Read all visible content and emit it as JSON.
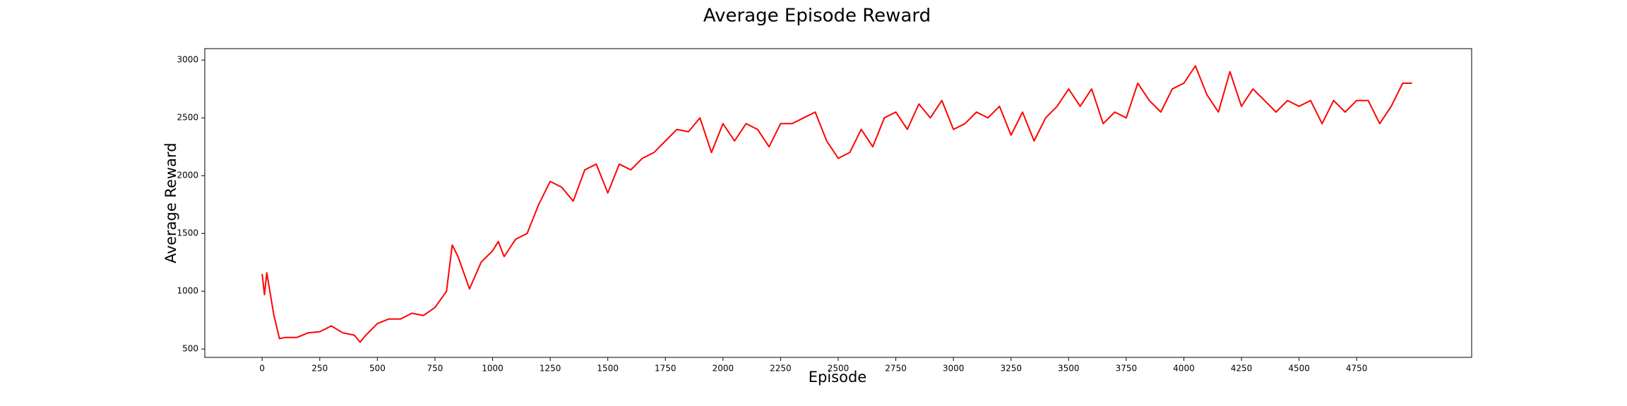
{
  "chart_data": {
    "type": "line",
    "title": "Average Episode Reward",
    "x_label": "Episode",
    "y_label": "Average Reward",
    "x": [
      0,
      10,
      20,
      50,
      75,
      100,
      150,
      200,
      250,
      300,
      350,
      400,
      425,
      450,
      500,
      550,
      600,
      650,
      700,
      750,
      800,
      825,
      850,
      900,
      950,
      1000,
      1025,
      1050,
      1100,
      1150,
      1200,
      1250,
      1300,
      1350,
      1400,
      1450,
      1500,
      1550,
      1600,
      1650,
      1700,
      1750,
      1800,
      1850,
      1900,
      1950,
      2000,
      2050,
      2100,
      2150,
      2200,
      2250,
      2300,
      2350,
      2400,
      2450,
      2500,
      2550,
      2600,
      2650,
      2700,
      2750,
      2800,
      2850,
      2900,
      2950,
      3000,
      3050,
      3100,
      3150,
      3200,
      3250,
      3300,
      3350,
      3400,
      3450,
      3500,
      3550,
      3600,
      3650,
      3700,
      3750,
      3800,
      3850,
      3900,
      3950,
      4000,
      4050,
      4100,
      4150,
      4200,
      4250,
      4300,
      4350,
      4400,
      4450,
      4500,
      4550,
      4600,
      4650,
      4700,
      4750,
      4800,
      4850,
      4900,
      4950,
      4990
    ],
    "series": [
      {
        "name": "Average Reward",
        "color": "#ff0000",
        "values": [
          1150,
          970,
          1160,
          800,
          590,
          600,
          600,
          640,
          650,
          700,
          640,
          620,
          560,
          620,
          720,
          760,
          760,
          810,
          790,
          860,
          1000,
          1400,
          1300,
          1020,
          1250,
          1350,
          1430,
          1300,
          1450,
          1500,
          1750,
          1950,
          1900,
          1780,
          2050,
          2100,
          1850,
          2100,
          2050,
          2150,
          2200,
          2300,
          2400,
          2380,
          2500,
          2200,
          2450,
          2300,
          2450,
          2400,
          2250,
          2450,
          2450,
          2500,
          2550,
          2300,
          2150,
          2200,
          2400,
          2250,
          2500,
          2550,
          2400,
          2620,
          2500,
          2650,
          2400,
          2450,
          2550,
          2500,
          2600,
          2350,
          2550,
          2300,
          2500,
          2600,
          2750,
          2600,
          2750,
          2450,
          2550,
          2500,
          2800,
          2650,
          2550,
          2750,
          2800,
          2950,
          2700,
          2550,
          2900,
          2600,
          2750,
          2650,
          2550,
          2650,
          2600,
          2650,
          2450,
          2650,
          2550,
          2650,
          2650,
          2450,
          2600,
          2800,
          2800
        ]
      }
    ],
    "xlim": [
      -249,
      5249
    ],
    "ylim": [
      428,
      3099
    ],
    "xticks": [
      0,
      250,
      500,
      750,
      1000,
      1250,
      1500,
      1750,
      2000,
      2250,
      2500,
      2750,
      3000,
      3250,
      3500,
      3750,
      4000,
      4250,
      4500,
      4750
    ],
    "yticks": [
      500,
      1000,
      1500,
      2000,
      2500,
      3000
    ],
    "grid": false
  }
}
